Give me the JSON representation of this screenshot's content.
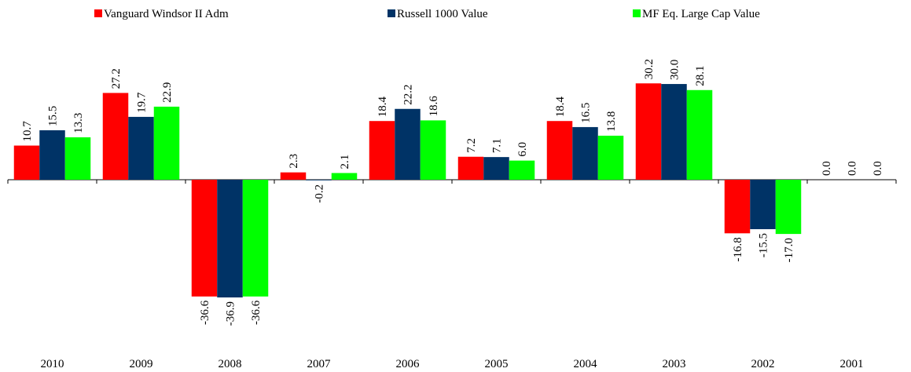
{
  "chart_data": {
    "type": "bar",
    "categories": [
      "2010",
      "2009",
      "2008",
      "2007",
      "2006",
      "2005",
      "2004",
      "2003",
      "2002",
      "2001"
    ],
    "series": [
      {
        "name": "Vanguard Windsor II Adm",
        "color": "#ff0000",
        "values": [
          10.7,
          27.2,
          -36.6,
          2.3,
          18.4,
          7.2,
          18.4,
          30.2,
          -16.8,
          0
        ],
        "value_labels": [
          "10.7",
          "27.2",
          "-36.6",
          "2.3",
          "18.4",
          "7.2",
          "18.4",
          "30.2",
          "-16.8",
          "0.0"
        ]
      },
      {
        "name": "Russell 1000 Value",
        "color": "#003366",
        "values": [
          15.5,
          19.7,
          -36.9,
          -0.2,
          22.2,
          7.1,
          16.5,
          30,
          -15.5,
          0
        ],
        "value_labels": [
          "15.5",
          "19.7",
          "-36.9",
          "-0.2",
          "22.2",
          "7.1",
          "16.5",
          "30.0",
          "-15.5",
          "0.0"
        ]
      },
      {
        "name": "MF  Eq. Large Cap Value",
        "color": "#00ff00",
        "values": [
          13.3,
          22.9,
          -36.6,
          2.1,
          18.6,
          6,
          13.8,
          28.1,
          -17,
          0
        ],
        "value_labels": [
          "13.3",
          "22.9",
          "-36.6",
          "2.1",
          "18.6",
          "6.0",
          "13.8",
          "28.1",
          "-17.0",
          "0.0"
        ]
      }
    ]
  }
}
